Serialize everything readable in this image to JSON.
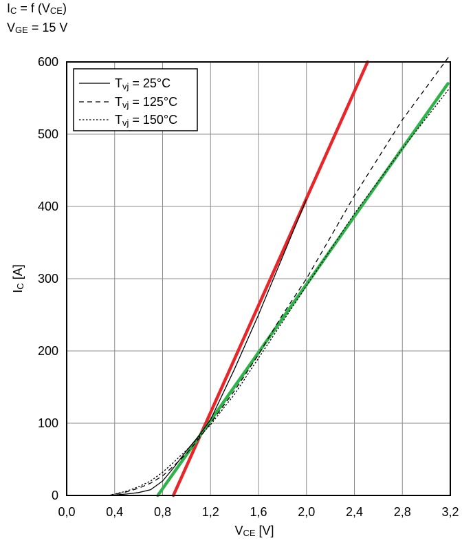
{
  "header": {
    "line1_main": "I",
    "line1_sub": "C",
    "line1_rest": " = f (V",
    "line1_sub2": "CE",
    "line1_end": ")",
    "line2_main": "V",
    "line2_sub": "GE",
    "line2_rest": " = 15 V"
  },
  "chart_data": {
    "type": "line",
    "xlim": [
      0.0,
      3.2
    ],
    "ylim": [
      0,
      600
    ],
    "x_ticks": [
      0.0,
      0.4,
      0.8,
      1.2,
      1.6,
      2.0,
      2.4,
      2.8,
      3.2
    ],
    "x_tick_labels": [
      "0,0",
      "0,4",
      "0,8",
      "1,2",
      "1,6",
      "2,0",
      "2,4",
      "2,8",
      "3,2"
    ],
    "y_ticks": [
      0,
      100,
      200,
      300,
      400,
      500,
      600
    ],
    "y_tick_labels": [
      "0",
      "100",
      "200",
      "300",
      "400",
      "500",
      "600"
    ],
    "x_label_main": "V",
    "x_label_sub": "CE",
    "x_label_rest": " [V]",
    "y_label_main": "I",
    "y_label_sub": "C",
    "y_label_rest": " [A]",
    "grid": true,
    "legend_placement": "top-left",
    "series": [
      {
        "name_main": "T",
        "name_sub": "vj",
        "name_rest": " = 25°C",
        "style": "solid",
        "color": "#000000",
        "points": [
          [
            0.35,
            0
          ],
          [
            0.5,
            2
          ],
          [
            0.6,
            4
          ],
          [
            0.7,
            8
          ],
          [
            0.8,
            20
          ],
          [
            0.9,
            40
          ],
          [
            1.0,
            62
          ],
          [
            1.1,
            82
          ],
          [
            1.2,
            105
          ],
          [
            1.4,
            175
          ],
          [
            1.6,
            250
          ],
          [
            1.8,
            330
          ],
          [
            2.0,
            410
          ]
        ]
      },
      {
        "name_main": "T",
        "name_sub": "vj",
        "name_rest": " = 125°C",
        "style": "dashed",
        "color": "#000000",
        "points": [
          [
            0.35,
            0
          ],
          [
            0.5,
            5
          ],
          [
            0.6,
            10
          ],
          [
            0.7,
            17
          ],
          [
            0.8,
            27
          ],
          [
            0.9,
            42
          ],
          [
            1.0,
            58
          ],
          [
            1.1,
            78
          ],
          [
            1.2,
            100
          ],
          [
            1.4,
            145
          ],
          [
            1.6,
            195
          ],
          [
            1.8,
            250
          ],
          [
            2.0,
            300
          ],
          [
            2.4,
            415
          ],
          [
            2.8,
            520
          ],
          [
            3.2,
            610
          ]
        ]
      },
      {
        "name_main": "T",
        "name_sub": "vj",
        "name_rest": " = 150°C",
        "style": "dotted",
        "color": "#000000",
        "points": [
          [
            0.35,
            0
          ],
          [
            0.4,
            2
          ],
          [
            0.5,
            6
          ],
          [
            0.6,
            12
          ],
          [
            0.7,
            20
          ],
          [
            0.8,
            32
          ],
          [
            0.9,
            47
          ],
          [
            1.0,
            63
          ],
          [
            1.1,
            80
          ],
          [
            1.2,
            98
          ],
          [
            1.4,
            140
          ],
          [
            1.6,
            190
          ],
          [
            1.8,
            240
          ],
          [
            2.0,
            290
          ],
          [
            2.4,
            390
          ],
          [
            2.8,
            480
          ],
          [
            3.2,
            565
          ]
        ]
      }
    ],
    "overlay_lines": [
      {
        "color": "#e8262a",
        "points": [
          [
            0.89,
            0
          ],
          [
            2.51,
            600
          ]
        ]
      },
      {
        "color": "#2db34a",
        "points": [
          [
            0.76,
            0
          ],
          [
            3.18,
            570
          ]
        ]
      }
    ]
  }
}
